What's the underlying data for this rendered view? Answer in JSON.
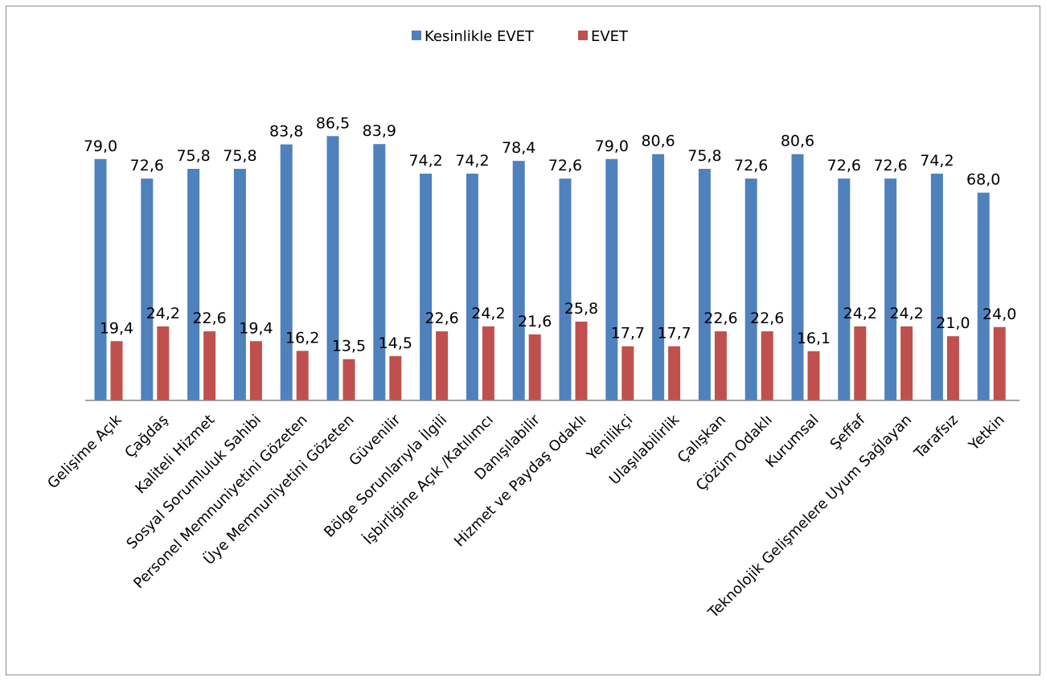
{
  "chart_data": {
    "type": "bar",
    "categories": [
      "Gelişime Açık",
      "Çağdaş",
      "Kaliteli Hizmet",
      "Sosyal Sorumluluk Sahibi",
      "Personel Memnuniyetini Gözeten",
      "Üye Memnuniyetini Gözeten",
      "Güvenilir",
      "Bölge Sorunlarıyla İlgili",
      "İşbirliğine Açık /Katılımcı",
      "Danışılabilir",
      "Hizmet ve Paydaş Odaklı",
      "Yenilikçi",
      "Ulaşılabilirlik",
      "Çalışkan",
      "Çözüm Odaklı",
      "Kurumsal",
      "Şeffaf",
      "Teknolojik Gelişmelere Uyum Sağlayan",
      "Tarafsız",
      "Yetkin"
    ],
    "series": [
      {
        "name": "Kesinlikle EVET",
        "color": "#4f81bd",
        "values": [
          79.0,
          72.6,
          75.8,
          75.8,
          83.8,
          86.5,
          83.9,
          74.2,
          74.2,
          78.4,
          72.6,
          79.0,
          80.6,
          75.8,
          72.6,
          80.6,
          72.6,
          72.6,
          74.2,
          68.0
        ],
        "labels": [
          "79,0",
          "72,6",
          "75,8",
          "75,8",
          "83,8",
          "86,5",
          "83,9",
          "74,2",
          "74,2",
          "78,4",
          "72,6",
          "79,0",
          "80,6",
          "75,8",
          "72,6",
          "80,6",
          "72,6",
          "72,6",
          "74,2",
          "68,0"
        ]
      },
      {
        "name": "EVET",
        "color": "#c0504d",
        "values": [
          19.4,
          24.2,
          22.6,
          19.4,
          16.2,
          13.5,
          14.5,
          22.6,
          24.2,
          21.6,
          25.8,
          17.7,
          17.7,
          22.6,
          22.6,
          16.1,
          24.2,
          24.2,
          21.0,
          24.0
        ],
        "labels": [
          "19,4",
          "24,2",
          "22,6",
          "19,4",
          "16,2",
          "13,5",
          "14,5",
          "22,6",
          "24,2",
          "21,6",
          "25,8",
          "17,7",
          "17,7",
          "22,6",
          "22,6",
          "16,1",
          "24,2",
          "24,2",
          "21,0",
          "24,0"
        ]
      }
    ],
    "ylim": [
      0,
      100
    ],
    "grid": false,
    "legend_position": "top-center"
  }
}
